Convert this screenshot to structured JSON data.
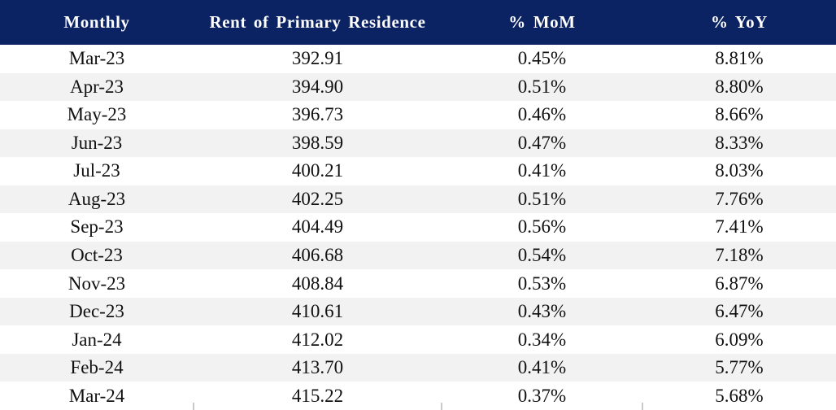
{
  "chart_data": {
    "type": "table",
    "title": "",
    "columns": [
      "Monthly",
      "Rent of Primary Residence",
      "% MoM",
      "% YoY"
    ],
    "rows": [
      [
        "Mar-23",
        "392.91",
        "0.45%",
        "8.81%"
      ],
      [
        "Apr-23",
        "394.90",
        "0.51%",
        "8.80%"
      ],
      [
        "May-23",
        "396.73",
        "0.46%",
        "8.66%"
      ],
      [
        "Jun-23",
        "398.59",
        "0.47%",
        "8.33%"
      ],
      [
        "Jul-23",
        "400.21",
        "0.41%",
        "8.03%"
      ],
      [
        "Aug-23",
        "402.25",
        "0.51%",
        "7.76%"
      ],
      [
        "Sep-23",
        "404.49",
        "0.56%",
        "7.41%"
      ],
      [
        "Oct-23",
        "406.68",
        "0.54%",
        "7.18%"
      ],
      [
        "Nov-23",
        "408.84",
        "0.53%",
        "6.87%"
      ],
      [
        "Dec-23",
        "410.61",
        "0.43%",
        "6.47%"
      ],
      [
        "Jan-24",
        "412.02",
        "0.34%",
        "6.09%"
      ],
      [
        "Feb-24",
        "413.70",
        "0.41%",
        "5.77%"
      ],
      [
        "Mar-24",
        "415.22",
        "0.37%",
        "5.68%"
      ]
    ],
    "layout": {
      "banded_rows": true,
      "first_row_band": "white",
      "alt_row_band": "light-gray",
      "header_style": "dark-navy-bold-white-serif"
    }
  },
  "colors": {
    "header_bg": "#0b2263",
    "header_text": "#ffffff",
    "row_bg": "#ffffff",
    "row_alt_bg": "#f2f2f2",
    "body_text": "#111111",
    "bottom_tick": "#c9c9c9"
  }
}
